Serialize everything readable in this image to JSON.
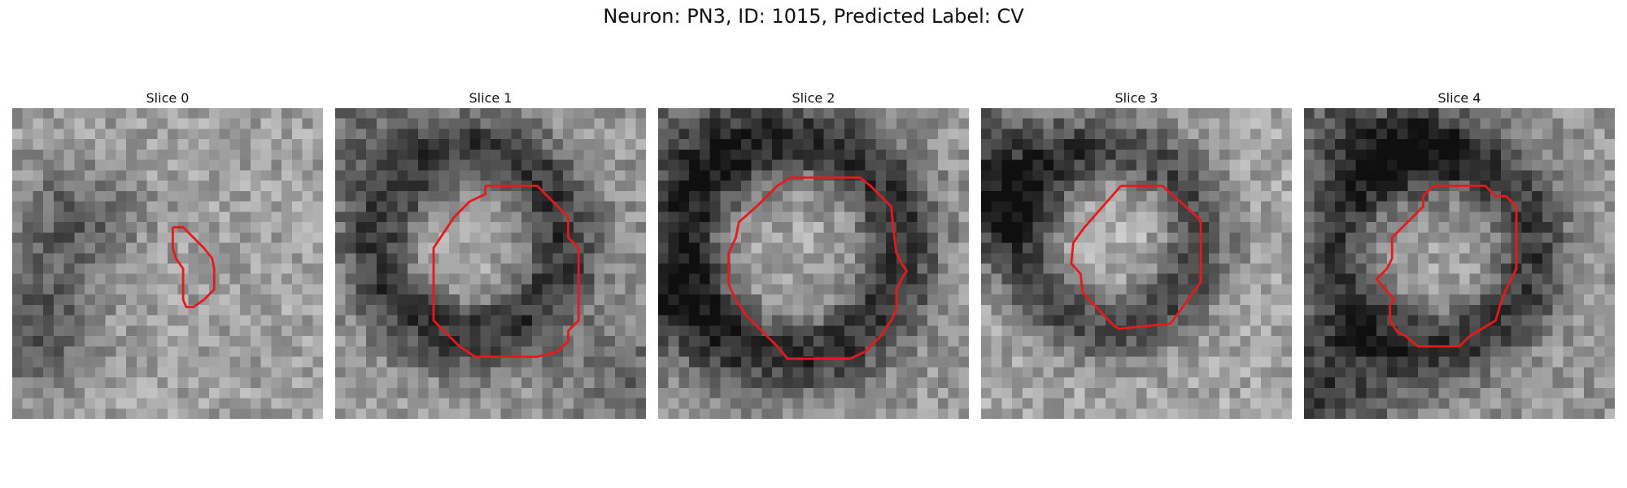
{
  "figure": {
    "title": "Neuron: PN3, ID: 1015, Predicted Label: CV",
    "contour_color": "#e8191b",
    "colormap": "gray"
  },
  "panels": [
    {
      "label": "Slice 0"
    },
    {
      "label": "Slice 1"
    },
    {
      "label": "Slice 2"
    },
    {
      "label": "Slice 3"
    },
    {
      "label": "Slice 4"
    }
  ]
}
